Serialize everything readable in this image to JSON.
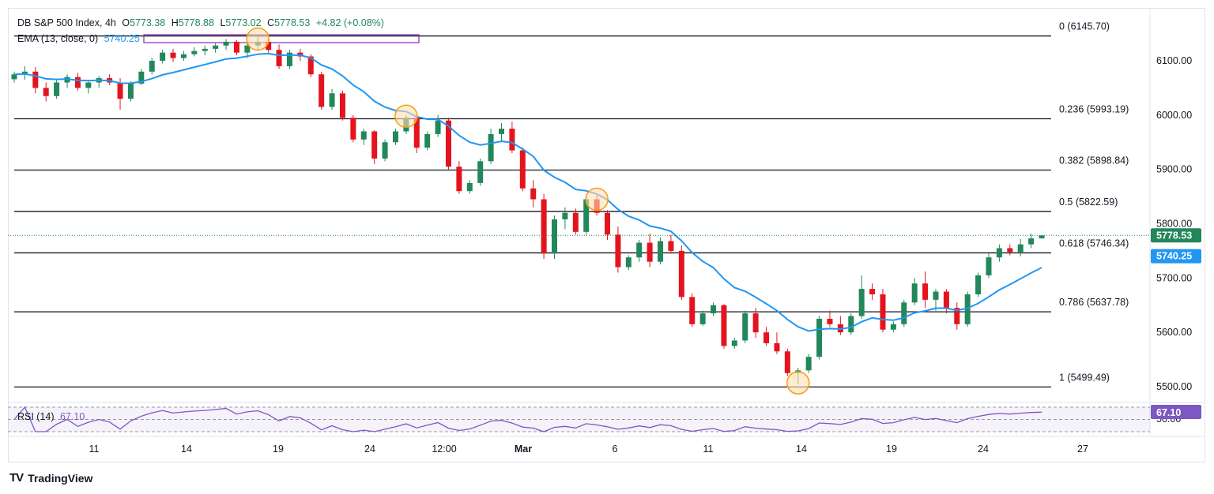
{
  "header": {
    "symbol": "DB S&P 500 Index, 4h",
    "open_label": "O",
    "open": "5773.38",
    "high_label": "H",
    "high": "5778.88",
    "low_label": "L",
    "low": "5773.02",
    "close_label": "C",
    "close": "5778.53",
    "change": "+4.82 (+0.08%)"
  },
  "ema_legend": {
    "label": "EMA (13, close, 0)",
    "value": "5740.25"
  },
  "rsi_legend": {
    "label": "RSI (14)",
    "value": "67.10"
  },
  "brand": {
    "name": "TradingView",
    "logo": "TV"
  },
  "colors": {
    "up": "#22875a",
    "down": "#e3141e",
    "ema": "#2196f3",
    "rsi": "#7e57c2",
    "price_badge": "#22875a",
    "ema_badge": "#2196f3",
    "circle_fill": "#ffe0b2",
    "circle_stroke": "#f59e0b"
  },
  "chart_data": {
    "type": "candlestick",
    "title": "DB S&P 500 Index, 4h",
    "y_ticks": [
      5500,
      5600,
      5700,
      5800,
      5900,
      6000,
      6100
    ],
    "y_tick_labels": [
      "5500.00",
      "5600.00",
      "5700.00",
      "5800.00",
      "5900.00",
      "6000.00",
      "6100.00"
    ],
    "x_tick_labels": [
      "11",
      "14",
      "19",
      "24",
      "12:00",
      "Mar",
      "6",
      "11",
      "14",
      "19",
      "24",
      "27"
    ],
    "fib_levels": [
      {
        "ratio": "0",
        "price": 6145.7,
        "label": "0 (6145.70)"
      },
      {
        "ratio": "0.236",
        "price": 5993.19,
        "label": "0.236 (5993.19)"
      },
      {
        "ratio": "0.382",
        "price": 5898.84,
        "label": "0.382 (5898.84)"
      },
      {
        "ratio": "0.5",
        "price": 5822.59,
        "label": "0.5 (5822.59)"
      },
      {
        "ratio": "0.618",
        "price": 5746.34,
        "label": "0.618 (5746.34)"
      },
      {
        "ratio": "0.786",
        "price": 5637.78,
        "label": "0.786 (5637.78)"
      },
      {
        "ratio": "1",
        "price": 5499.49,
        "label": "1 (5499.49)"
      }
    ],
    "last_price": "5778.53",
    "ema_last": "5740.25",
    "rsi_last": "67.10",
    "rsi_tick_label": "50.00",
    "highlighted_pivots": [
      "Feb 19 high",
      "Feb 27 retest",
      "Mar 5 retest",
      "Mar 13 low"
    ],
    "series": [
      {
        "name": "DB S&P 500 Index",
        "values": [
          [
            6066,
            6080,
            6060,
            6075
          ],
          [
            6075,
            6090,
            6065,
            6080
          ],
          [
            6080,
            6088,
            6040,
            6050
          ],
          [
            6050,
            6060,
            6025,
            6035
          ],
          [
            6035,
            6065,
            6030,
            6060
          ],
          [
            6060,
            6075,
            6050,
            6070
          ],
          [
            6070,
            6078,
            6045,
            6050
          ],
          [
            6050,
            6065,
            6040,
            6060
          ],
          [
            6060,
            6072,
            6050,
            6068
          ],
          [
            6068,
            6075,
            6055,
            6060
          ],
          [
            6060,
            6068,
            6010,
            6030
          ],
          [
            6030,
            6062,
            6025,
            6058
          ],
          [
            6058,
            6085,
            6055,
            6080
          ],
          [
            6080,
            6105,
            6075,
            6100
          ],
          [
            6100,
            6120,
            6095,
            6115
          ],
          [
            6115,
            6122,
            6098,
            6105
          ],
          [
            6105,
            6118,
            6100,
            6112
          ],
          [
            6112,
            6125,
            6108,
            6118
          ],
          [
            6118,
            6128,
            6110,
            6122
          ],
          [
            6122,
            6132,
            6115,
            6128
          ],
          [
            6128,
            6140,
            6120,
            6135
          ],
          [
            6135,
            6138,
            6110,
            6115
          ],
          [
            6115,
            6132,
            6105,
            6128
          ],
          [
            6128,
            6147,
            6120,
            6135
          ],
          [
            6135,
            6140,
            6115,
            6120
          ],
          [
            6120,
            6130,
            6085,
            6090
          ],
          [
            6090,
            6120,
            6085,
            6115
          ],
          [
            6115,
            6122,
            6100,
            6108
          ],
          [
            6108,
            6112,
            6070,
            6075
          ],
          [
            6075,
            6080,
            6010,
            6015
          ],
          [
            6015,
            6048,
            6010,
            6040
          ],
          [
            6040,
            6045,
            5990,
            5995
          ],
          [
            5995,
            6000,
            5950,
            5955
          ],
          [
            5955,
            5975,
            5945,
            5970
          ],
          [
            5970,
            5972,
            5910,
            5920
          ],
          [
            5920,
            5955,
            5915,
            5950
          ],
          [
            5950,
            5975,
            5945,
            5970
          ],
          [
            5970,
            6000,
            5965,
            5995
          ],
          [
            5995,
            6000,
            5930,
            5940
          ],
          [
            5940,
            5970,
            5935,
            5965
          ],
          [
            5965,
            6000,
            5960,
            5990
          ],
          [
            5990,
            5995,
            5900,
            5905
          ],
          [
            5905,
            5915,
            5855,
            5860
          ],
          [
            5860,
            5880,
            5855,
            5875
          ],
          [
            5875,
            5920,
            5870,
            5915
          ],
          [
            5915,
            5975,
            5910,
            5965
          ],
          [
            5965,
            5985,
            5950,
            5975
          ],
          [
            5975,
            5988,
            5930,
            5935
          ],
          [
            5935,
            5940,
            5860,
            5865
          ],
          [
            5865,
            5880,
            5830,
            5845
          ],
          [
            5845,
            5855,
            5735,
            5745
          ],
          [
            5745,
            5815,
            5735,
            5808
          ],
          [
            5808,
            5830,
            5790,
            5820
          ],
          [
            5820,
            5828,
            5780,
            5785
          ],
          [
            5785,
            5852,
            5780,
            5845
          ],
          [
            5845,
            5855,
            5815,
            5820
          ],
          [
            5820,
            5825,
            5770,
            5780
          ],
          [
            5780,
            5795,
            5710,
            5720
          ],
          [
            5720,
            5742,
            5715,
            5738
          ],
          [
            5738,
            5770,
            5730,
            5765
          ],
          [
            5765,
            5782,
            5720,
            5730
          ],
          [
            5730,
            5775,
            5725,
            5768
          ],
          [
            5768,
            5780,
            5745,
            5750
          ],
          [
            5750,
            5760,
            5660,
            5665
          ],
          [
            5665,
            5672,
            5610,
            5615
          ],
          [
            5615,
            5640,
            5612,
            5635
          ],
          [
            5635,
            5655,
            5630,
            5650
          ],
          [
            5650,
            5652,
            5570,
            5575
          ],
          [
            5575,
            5590,
            5570,
            5585
          ],
          [
            5585,
            5640,
            5580,
            5635
          ],
          [
            5635,
            5645,
            5590,
            5600
          ],
          [
            5600,
            5610,
            5575,
            5580
          ],
          [
            5580,
            5600,
            5560,
            5565
          ],
          [
            5565,
            5570,
            5520,
            5525
          ],
          [
            5525,
            5535,
            5505,
            5530
          ],
          [
            5530,
            5560,
            5525,
            5555
          ],
          [
            5555,
            5630,
            5550,
            5625
          ],
          [
            5625,
            5640,
            5610,
            5615
          ],
          [
            5615,
            5630,
            5595,
            5600
          ],
          [
            5600,
            5635,
            5595,
            5630
          ],
          [
            5630,
            5705,
            5625,
            5680
          ],
          [
            5680,
            5690,
            5660,
            5670
          ],
          [
            5670,
            5680,
            5600,
            5605
          ],
          [
            5605,
            5620,
            5600,
            5615
          ],
          [
            5615,
            5660,
            5610,
            5655
          ],
          [
            5655,
            5700,
            5650,
            5690
          ],
          [
            5690,
            5712,
            5645,
            5660
          ],
          [
            5660,
            5680,
            5640,
            5675
          ],
          [
            5675,
            5680,
            5635,
            5645
          ],
          [
            5645,
            5655,
            5605,
            5615
          ],
          [
            5615,
            5675,
            5610,
            5670
          ],
          [
            5670,
            5710,
            5665,
            5705
          ],
          [
            5705,
            5745,
            5700,
            5738
          ],
          [
            5738,
            5762,
            5730,
            5755
          ],
          [
            5755,
            5762,
            5742,
            5748
          ],
          [
            5748,
            5772,
            5740,
            5762
          ],
          [
            5762,
            5782,
            5755,
            5773
          ],
          [
            5773,
            5778.88,
            5773.02,
            5778.53
          ]
        ]
      }
    ]
  }
}
